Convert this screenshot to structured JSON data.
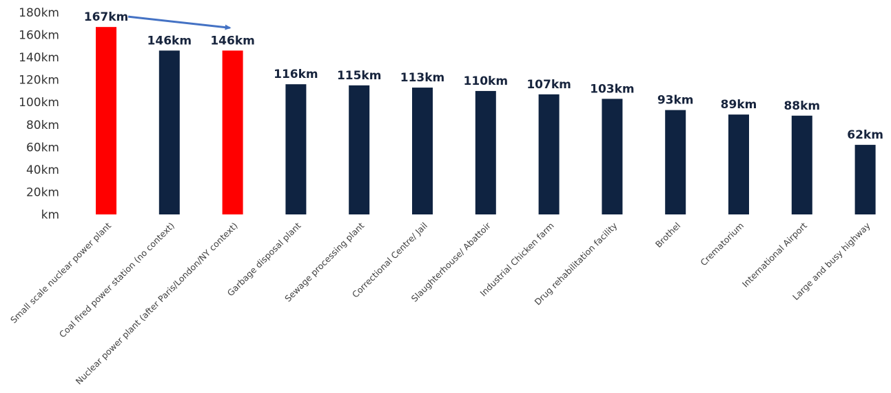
{
  "chart_data": {
    "type": "bar",
    "title": "",
    "xlabel": "",
    "ylabel": "",
    "ylim": [
      0,
      180
    ],
    "y_ticks": [
      0,
      20,
      40,
      60,
      80,
      100,
      120,
      140,
      160,
      180
    ],
    "y_tick_labels": [
      "km",
      "20km",
      "40km",
      "60km",
      "80km",
      "100km",
      "120km",
      "140km",
      "160km",
      "180km"
    ],
    "grid": false,
    "legend": "none",
    "categories": [
      "Small scale nuclear power plant",
      "Coal fired power station (no context)",
      "Nuclear power plant (after Paris/London/NY context)",
      "Garbage disposal plant",
      "Sewage processing plant",
      "Correctional Centre/ Jail",
      "Slaughterhouse/ Abattoir",
      "Industrial Chicken farm",
      "Drug rehabilitation facility",
      "Brothel",
      "Crematorium",
      "International Airport",
      "Large and busy highway"
    ],
    "values": [
      167,
      146,
      146,
      116,
      115,
      113,
      110,
      107,
      103,
      93,
      89,
      88,
      62
    ],
    "data_labels": [
      "167km",
      "146km",
      "146km",
      "116km",
      "115km",
      "113km",
      "110km",
      "107km",
      "103km",
      "93km",
      "89km",
      "88km",
      "62km"
    ],
    "bar_colors": [
      "#ff0000",
      "#0f2341",
      "#ff0000",
      "#0f2341",
      "#0f2341",
      "#0f2341",
      "#0f2341",
      "#0f2341",
      "#0f2341",
      "#0f2341",
      "#0f2341",
      "#0f2341",
      "#0f2341"
    ],
    "annotation": {
      "type": "arrow",
      "from_category": 0,
      "to_category": 2,
      "color": "#4472c4"
    }
  }
}
